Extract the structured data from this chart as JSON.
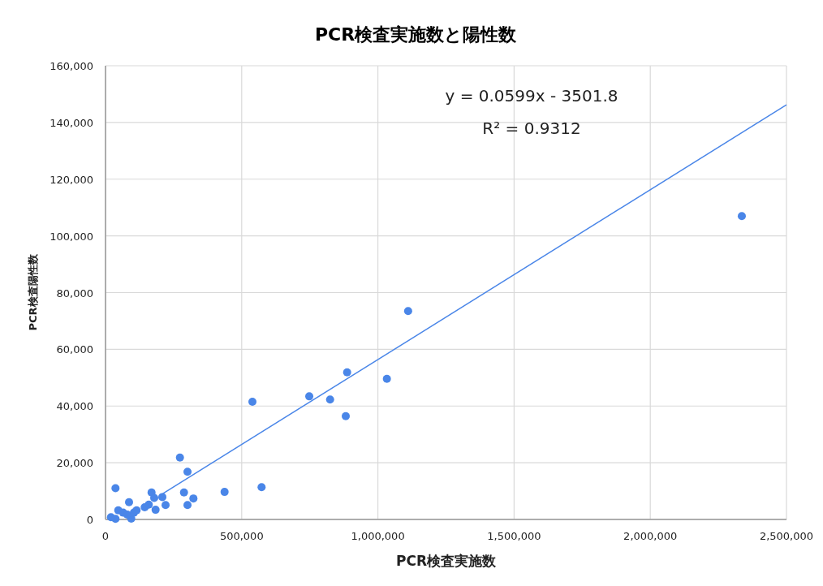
{
  "chart_data": {
    "type": "scatter",
    "title": "PCR検査実施数と陽性数",
    "xlabel": "PCR検査実施数",
    "ylabel": "PCR検査陽性数",
    "annotations": [
      "y = 0.0599x - 3501.8",
      "R² = 0.9312"
    ],
    "series": [
      {
        "color": "#4a86e8",
        "marker": "circle",
        "x": [
          2336000,
          1111000,
          887000,
          1033000,
          748000,
          824500,
          539300,
          882000,
          573000,
          437100,
          273200,
          301000,
          36650,
          86400,
          169000,
          288100,
          322700,
          220500,
          301000,
          208600,
          183800,
          158800,
          178800,
          20000,
          36650,
          94500,
          46800,
          64700,
          79600,
          104300,
          114100,
          143900
        ],
        "values": [
          107000,
          73500,
          51900,
          49600,
          43400,
          42300,
          41500,
          36400,
          11400,
          9700,
          21800,
          16800,
          11000,
          6100,
          9500,
          9500,
          7400,
          5100,
          5100,
          7900,
          3400,
          5200,
          7600,
          800,
          200,
          300,
          3200,
          2400,
          1700,
          2400,
          3200,
          4300
        ]
      },
      {
        "type": "line",
        "color": "#4a86e8",
        "x": [
          200000,
          2500000
        ],
        "values": [
          8500,
          146200
        ]
      }
    ],
    "xlim": [
      0,
      2500000
    ],
    "ylim": [
      0,
      160000
    ],
    "xticks": [
      {
        "value": 0,
        "label": "0"
      },
      {
        "value": 500000,
        "label": "500,000"
      },
      {
        "value": 1000000,
        "label": "1,000,000"
      },
      {
        "value": 1500000,
        "label": "1,500,000"
      },
      {
        "value": 2000000,
        "label": "2,000,000"
      },
      {
        "value": 2500000,
        "label": "2,500,000"
      }
    ],
    "yticks": [
      {
        "value": 0,
        "label": "0"
      },
      {
        "value": 20000,
        "label": "20,000"
      },
      {
        "value": 40000,
        "label": "40,000"
      },
      {
        "value": 60000,
        "label": "60,000"
      },
      {
        "value": 80000,
        "label": "80,000"
      },
      {
        "value": 100000,
        "label": "100,000"
      },
      {
        "value": 120000,
        "label": "120,000"
      },
      {
        "value": 140000,
        "label": "140,000"
      },
      {
        "value": 160000,
        "label": "160,000"
      }
    ],
    "grid": true
  }
}
